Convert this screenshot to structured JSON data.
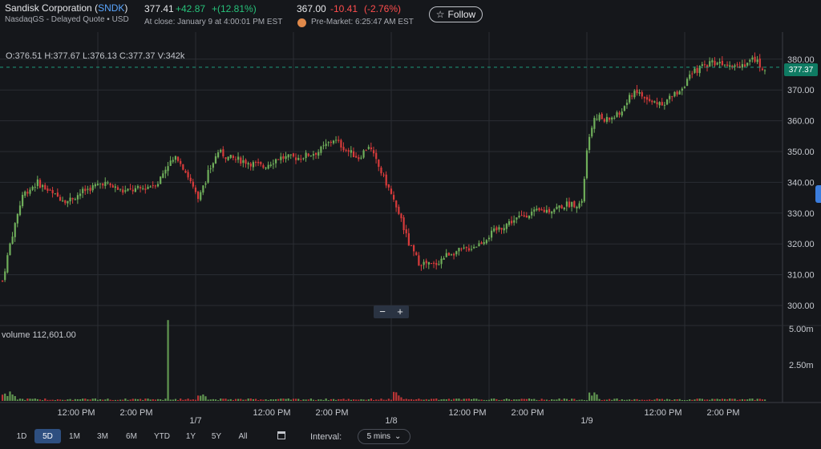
{
  "header": {
    "company_name": "Sandisk Corporation",
    "ticker": "SNDK",
    "exchange_line": "NasdaqGS - Delayed Quote • USD",
    "close": {
      "price": "377.41",
      "change": "+42.87",
      "percent": "+(12.81%)",
      "time": "At close: January 9 at 4:00:01 PM EST"
    },
    "premarket": {
      "price": "367.00",
      "change": "-10.41",
      "percent": "(-2.76%)",
      "time": "Pre-Market: 6:25:47 AM EST"
    },
    "follow_label": "Follow",
    "follow_icon": "star-icon"
  },
  "chart": {
    "ohlc_text": "O:376.51  H:377.67  L:376.13  C:377.37  V:342k",
    "volume_text": "volume  112,601.00",
    "last_price": "377.37",
    "zoom_minus": "−",
    "zoom_plus": "+"
  },
  "chart_data": {
    "type": "candlestick",
    "title": "",
    "price_axis": {
      "ticks": [
        "300.00",
        "310.00",
        "320.00",
        "330.00",
        "340.00",
        "350.00",
        "360.00",
        "370.00",
        "380.00"
      ],
      "range": [
        297,
        384
      ]
    },
    "volume_axis": {
      "ticks": [
        "2.50m",
        "5.00m"
      ]
    },
    "x_labels": [
      {
        "label": "12:00 PM",
        "day": 0
      },
      {
        "label": "2:00 PM",
        "day": 0
      },
      {
        "label": "1/7",
        "day": 1,
        "bold": true
      },
      {
        "label": "12:00 PM",
        "day": 1
      },
      {
        "label": "2:00 PM",
        "day": 1
      },
      {
        "label": "1/8",
        "day": 2,
        "bold": true
      },
      {
        "label": "12:00 PM",
        "day": 2
      },
      {
        "label": "2:00 PM",
        "day": 2
      },
      {
        "label": "1/9",
        "day": 3,
        "bold": true
      },
      {
        "label": "12:00 PM",
        "day": 3
      },
      {
        "label": "2:00 PM",
        "day": 3
      }
    ],
    "approx_close_path": [
      [
        0,
        308
      ],
      [
        3,
        320
      ],
      [
        8,
        336
      ],
      [
        14,
        340
      ],
      [
        20,
        336
      ],
      [
        26,
        334
      ],
      [
        32,
        337
      ],
      [
        40,
        340
      ],
      [
        48,
        337
      ],
      [
        56,
        338
      ],
      [
        62,
        340
      ],
      [
        66,
        346
      ],
      [
        70,
        348
      ],
      [
        74,
        342
      ],
      [
        78,
        334
      ],
      [
        82,
        343
      ],
      [
        86,
        350
      ],
      [
        90,
        348
      ],
      [
        96,
        347
      ],
      [
        104,
        345
      ],
      [
        110,
        348
      ],
      [
        118,
        348
      ],
      [
        126,
        350
      ],
      [
        132,
        354
      ],
      [
        138,
        350
      ],
      [
        142,
        348
      ],
      [
        146,
        352
      ],
      [
        150,
        345
      ],
      [
        154,
        338
      ],
      [
        158,
        330
      ],
      [
        162,
        320
      ],
      [
        166,
        314
      ],
      [
        172,
        313
      ],
      [
        178,
        317
      ],
      [
        184,
        318
      ],
      [
        190,
        320
      ],
      [
        196,
        324
      ],
      [
        202,
        327
      ],
      [
        210,
        330
      ],
      [
        218,
        331
      ],
      [
        226,
        333
      ],
      [
        231,
        333
      ],
      [
        233,
        350
      ],
      [
        236,
        362
      ],
      [
        240,
        360
      ],
      [
        246,
        362
      ],
      [
        252,
        370
      ],
      [
        258,
        366
      ],
      [
        264,
        366
      ],
      [
        270,
        370
      ],
      [
        276,
        376
      ],
      [
        282,
        379
      ],
      [
        288,
        379
      ],
      [
        294,
        378
      ],
      [
        300,
        380
      ],
      [
        303,
        377
      ]
    ],
    "volume_spikes": [
      {
        "bar": 66,
        "value_m": 5.6
      }
    ],
    "last_close": 377.37
  },
  "toolbar": {
    "ranges": [
      "1D",
      "5D",
      "1M",
      "3M",
      "6M",
      "YTD",
      "1Y",
      "5Y",
      "All"
    ],
    "active_range": "5D",
    "calendar_icon": "calendar-icon",
    "interval_label": "Interval:",
    "interval_value": "5 mins",
    "interval_icon": "chevron-down-icon"
  },
  "colors": {
    "background": "#15171b",
    "up": "#6fae5a",
    "down": "#d83b3b",
    "accent": "#0f7b63",
    "link": "#5aa6ff"
  }
}
